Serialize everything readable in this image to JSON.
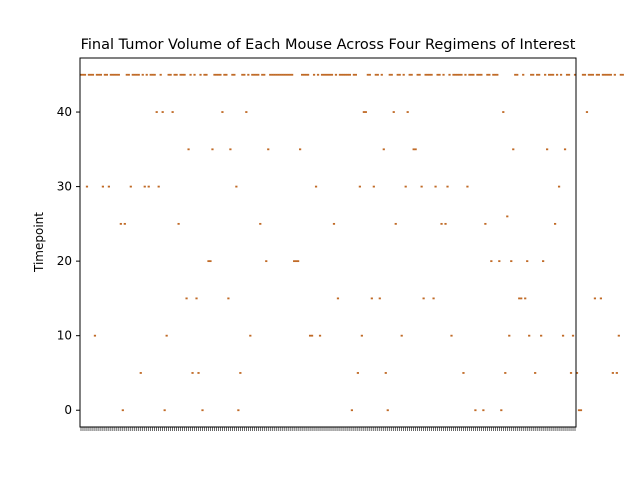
{
  "chart_data": {
    "type": "box",
    "title": "Final Tumor Volume of Each Mouse Across Four Regimens of Interest",
    "xlabel": "",
    "ylabel": "Timepoint",
    "ylim": [
      -2.25,
      47.25
    ],
    "yticks": [
      0,
      10,
      20,
      30,
      40
    ],
    "grid": false,
    "legend": "none",
    "n_categories": 249,
    "flier_color": "#c06a26",
    "values": [
      45,
      45,
      45,
      30,
      45,
      45,
      45,
      10,
      45,
      45,
      45,
      30,
      45,
      45,
      30,
      45,
      45,
      45,
      45,
      45,
      25,
      0,
      25,
      45,
      45,
      30,
      45,
      45,
      45,
      45,
      5,
      45,
      30,
      45,
      30,
      45,
      45,
      45,
      40,
      30,
      45,
      40,
      0,
      10,
      45,
      45,
      40,
      45,
      45,
      25,
      45,
      45,
      45,
      15,
      35,
      45,
      5,
      45,
      15,
      5,
      45,
      0,
      45,
      45,
      20,
      20,
      35,
      45,
      45,
      45,
      45,
      40,
      45,
      45,
      15,
      35,
      45,
      45,
      30,
      0,
      5,
      45,
      45,
      40,
      45,
      10,
      45,
      45,
      45,
      45,
      25,
      45,
      45,
      20,
      35,
      45,
      45,
      45,
      45,
      45,
      45,
      45,
      45,
      45,
      45,
      45,
      45,
      20,
      20,
      20,
      35,
      45,
      45,
      45,
      45,
      10,
      10,
      45,
      30,
      45,
      10,
      45,
      45,
      45,
      45,
      45,
      45,
      25,
      45,
      15,
      45,
      45,
      45,
      45,
      45,
      45,
      0,
      45,
      45,
      5,
      30,
      10,
      40,
      40,
      45,
      45,
      15,
      30,
      45,
      45,
      15,
      45,
      35,
      5,
      0,
      45,
      45,
      40,
      25,
      45,
      45,
      10,
      45,
      30,
      40,
      45,
      45,
      35,
      35,
      45,
      45,
      30,
      15,
      45,
      45,
      45,
      45,
      15,
      30,
      45,
      45,
      25,
      45,
      25,
      30,
      45,
      10,
      45,
      45,
      45,
      45,
      45,
      5,
      45,
      30,
      45,
      45,
      45,
      0,
      45,
      45,
      45,
      0,
      25,
      45,
      45,
      20,
      45,
      45,
      45,
      20,
      0,
      40,
      5,
      26,
      10,
      20,
      35,
      45,
      45,
      15,
      15,
      45,
      15,
      20,
      10,
      45,
      45,
      5,
      45,
      45,
      10,
      20,
      45,
      35,
      45,
      45,
      45,
      25,
      45,
      30,
      45,
      10,
      35,
      45,
      45,
      5,
      10,
      45,
      5,
      0,
      0,
      45,
      45,
      40,
      45,
      45,
      45,
      15,
      45,
      45,
      15,
      45,
      45,
      45,
      45,
      45,
      5,
      45,
      5,
      10,
      45,
      45
    ]
  }
}
